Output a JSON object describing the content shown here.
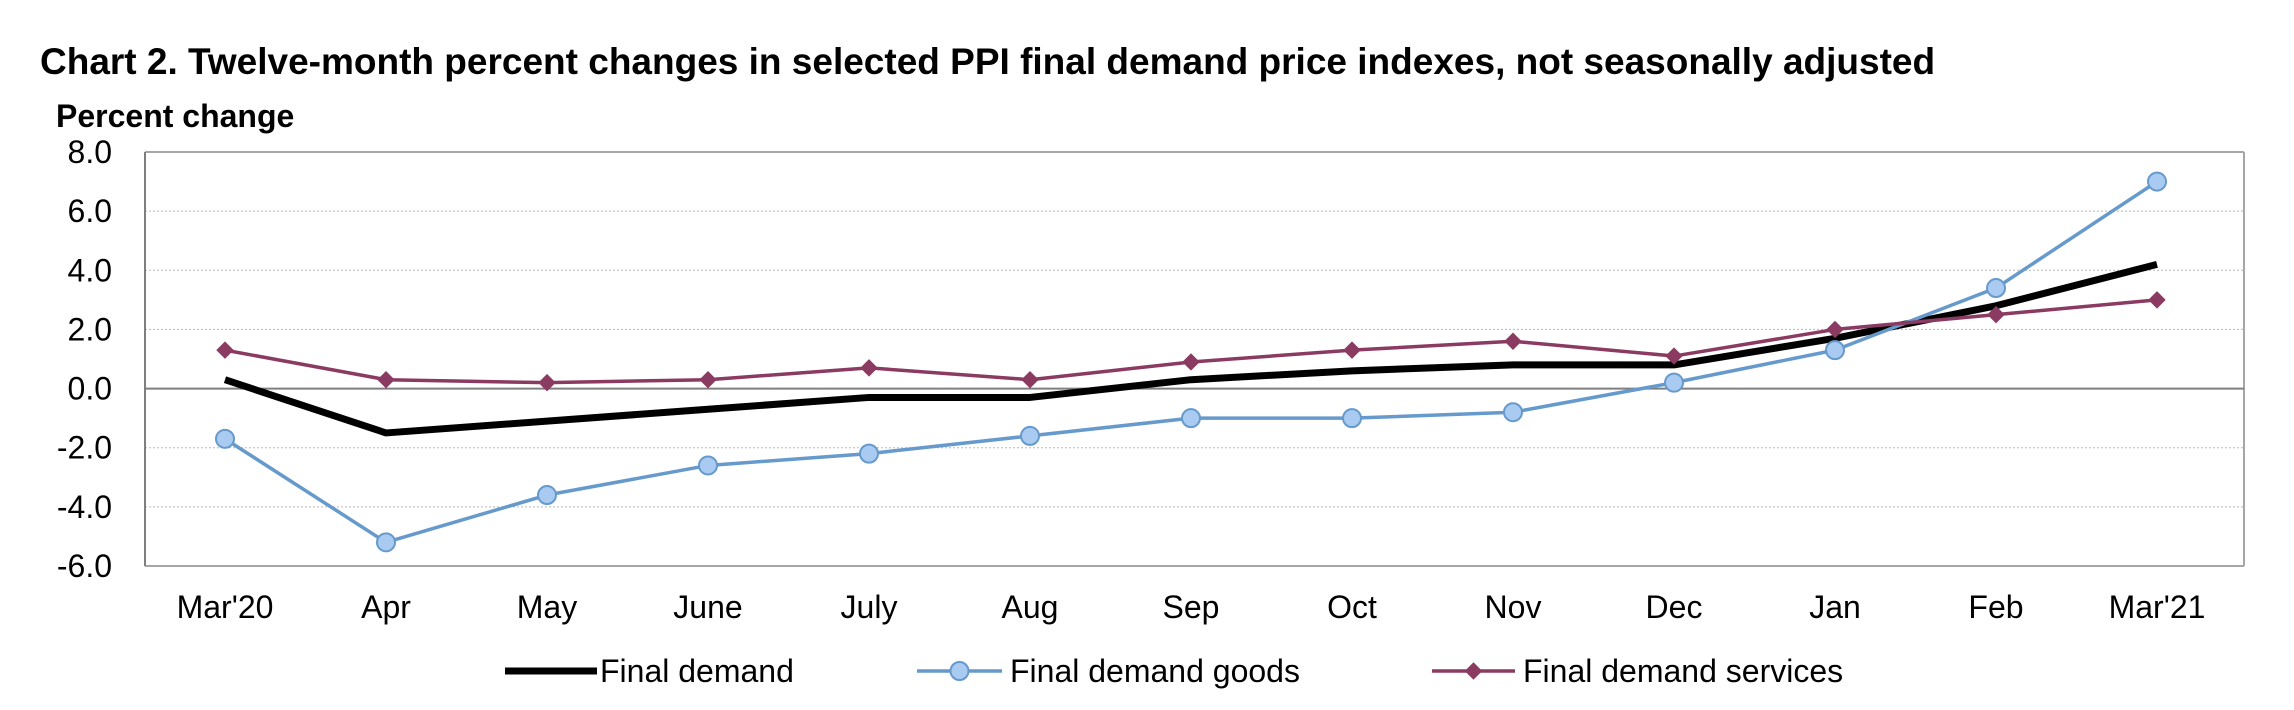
{
  "chart_data": {
    "type": "line",
    "title": "Chart 2. Twelve-month percent changes in selected PPI final demand price indexes, not seasonally adjusted",
    "ylabel": "Percent change",
    "xlabel": "",
    "ylim": [
      -6.0,
      8.0
    ],
    "yticks": [
      "8.0",
      "6.0",
      "4.0",
      "2.0",
      "0.0",
      "-2.0",
      "-4.0",
      "-6.0"
    ],
    "categories": [
      "Mar'20",
      "Apr",
      "May",
      "June",
      "July",
      "Aug",
      "Sep",
      "Oct",
      "Nov",
      "Dec",
      "Jan",
      "Feb",
      "Mar'21"
    ],
    "grid": true,
    "legend_position": "bottom",
    "series": [
      {
        "name": "Final demand",
        "color": "#000000",
        "marker": "none",
        "values": [
          0.3,
          -1.5,
          -1.1,
          -0.7,
          -0.3,
          -0.3,
          0.3,
          0.6,
          0.8,
          0.8,
          1.7,
          2.8,
          4.2
        ]
      },
      {
        "name": "Final demand goods",
        "color": "#6699CC",
        "marker": "circle",
        "marker_fill": "#A9CBF2",
        "values": [
          -1.7,
          -5.2,
          -3.6,
          -2.6,
          -2.2,
          -1.6,
          -1.0,
          -1.0,
          -0.8,
          0.2,
          1.3,
          3.4,
          7.0
        ]
      },
      {
        "name": "Final demand services",
        "color": "#8B3A62",
        "marker": "diamond",
        "values": [
          1.3,
          0.3,
          0.2,
          0.3,
          0.7,
          0.3,
          0.9,
          1.3,
          1.6,
          1.1,
          2.0,
          2.5,
          3.0
        ]
      }
    ]
  }
}
